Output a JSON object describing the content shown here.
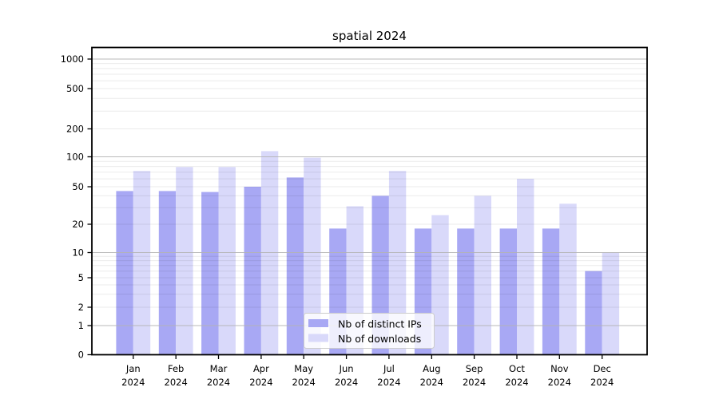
{
  "chart_data": {
    "type": "bar",
    "title": "spatial 2024",
    "categories": [
      "Jan 2024",
      "Feb 2024",
      "Mar 2024",
      "Apr 2024",
      "May 2024",
      "Jun 2024",
      "Jul 2024",
      "Aug 2024",
      "Sep 2024",
      "Oct 2024",
      "Nov 2024",
      "Dec 2024"
    ],
    "series": [
      {
        "name": "Nb of distinct IPs",
        "color": "#a8a8f4",
        "values": [
          45,
          45,
          44,
          50,
          62,
          18,
          40,
          18,
          18,
          18,
          18,
          6
        ]
      },
      {
        "name": "Nb of downloads",
        "color": "#d9d9fa",
        "values": [
          72,
          79,
          79,
          115,
          98,
          31,
          72,
          25,
          40,
          60,
          33,
          10
        ]
      }
    ],
    "xlabel": "",
    "ylabel": "",
    "y_scale": "symlog",
    "y_ticks": [
      0,
      1,
      2,
      5,
      10,
      20,
      50,
      100,
      200,
      500,
      1000
    ],
    "major_grid_values": [
      1,
      10,
      100,
      1000
    ],
    "ylim": [
      0,
      1300
    ],
    "grid": true,
    "legend_position": "lower center",
    "colors": {
      "major_grid": "#b3b3b3",
      "minor_grid": "#000000",
      "spine": "#000000",
      "text": "#000000",
      "legend_bg": "#ffffff",
      "legend_border": "#cccccc"
    }
  }
}
